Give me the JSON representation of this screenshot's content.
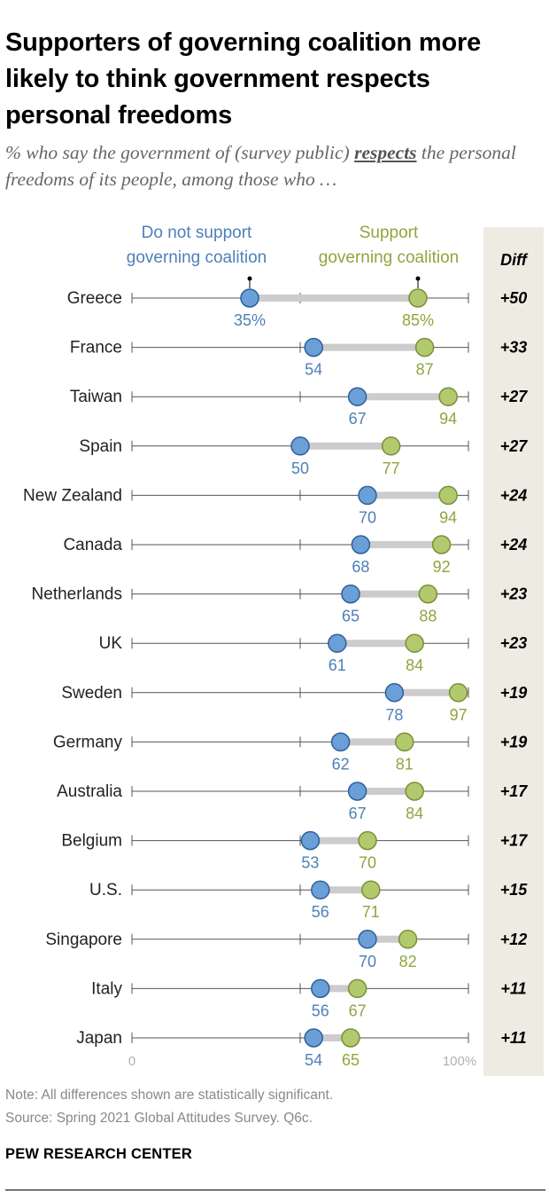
{
  "title": "Supporters of governing coalition more likely to think government respects personal freedoms",
  "subtitle": {
    "before": "% who say the government of (survey public) ",
    "emphasis": "respects",
    "after": " the personal freedoms of its people, among those who …"
  },
  "chart_data": {
    "type": "dot-plot",
    "xlim": [
      0,
      100
    ],
    "tick_labels": [
      "0",
      "100%"
    ],
    "series": [
      {
        "name": "Do not support governing coalition",
        "label_lines": [
          "Do not support",
          "governing coalition"
        ],
        "color": "#6a9fd8"
      },
      {
        "name": "Support governing coalition",
        "label_lines": [
          "Support",
          "governing coalition"
        ],
        "color": "#b2c96d"
      }
    ],
    "diff_header": "Diff",
    "rows": [
      {
        "country": "Greece",
        "not_support": 35,
        "support": 85,
        "not_support_label": "35%",
        "support_label": "85%",
        "diff": "+50"
      },
      {
        "country": "France",
        "not_support": 54,
        "support": 87,
        "not_support_label": "54",
        "support_label": "87",
        "diff": "+33"
      },
      {
        "country": "Taiwan",
        "not_support": 67,
        "support": 94,
        "not_support_label": "67",
        "support_label": "94",
        "diff": "+27"
      },
      {
        "country": "Spain",
        "not_support": 50,
        "support": 77,
        "not_support_label": "50",
        "support_label": "77",
        "diff": "+27"
      },
      {
        "country": "New Zealand",
        "not_support": 70,
        "support": 94,
        "not_support_label": "70",
        "support_label": "94",
        "diff": "+24"
      },
      {
        "country": "Canada",
        "not_support": 68,
        "support": 92,
        "not_support_label": "68",
        "support_label": "92",
        "diff": "+24"
      },
      {
        "country": "Netherlands",
        "not_support": 65,
        "support": 88,
        "not_support_label": "65",
        "support_label": "88",
        "diff": "+23"
      },
      {
        "country": "UK",
        "not_support": 61,
        "support": 84,
        "not_support_label": "61",
        "support_label": "84",
        "diff": "+23"
      },
      {
        "country": "Sweden",
        "not_support": 78,
        "support": 97,
        "not_support_label": "78",
        "support_label": "97",
        "diff": "+19"
      },
      {
        "country": "Germany",
        "not_support": 62,
        "support": 81,
        "not_support_label": "62",
        "support_label": "81",
        "diff": "+19"
      },
      {
        "country": "Australia",
        "not_support": 67,
        "support": 84,
        "not_support_label": "67",
        "support_label": "84",
        "diff": "+17"
      },
      {
        "country": "Belgium",
        "not_support": 53,
        "support": 70,
        "not_support_label": "53",
        "support_label": "70",
        "diff": "+17"
      },
      {
        "country": "U.S.",
        "not_support": 56,
        "support": 71,
        "not_support_label": "56",
        "support_label": "71",
        "diff": "+15"
      },
      {
        "country": "Singapore",
        "not_support": 70,
        "support": 82,
        "not_support_label": "70",
        "support_label": "82",
        "diff": "+12"
      },
      {
        "country": "Italy",
        "not_support": 56,
        "support": 67,
        "not_support_label": "56",
        "support_label": "67",
        "diff": "+11"
      },
      {
        "country": "Japan",
        "not_support": 54,
        "support": 65,
        "not_support_label": "54",
        "support_label": "65",
        "diff": "+11"
      }
    ]
  },
  "notes": {
    "note": "Note: All differences shown are statistically significant.",
    "source": "Source: Spring 2021 Global Attitudes Survey. Q6c."
  },
  "brand": "PEW RESEARCH CENTER"
}
